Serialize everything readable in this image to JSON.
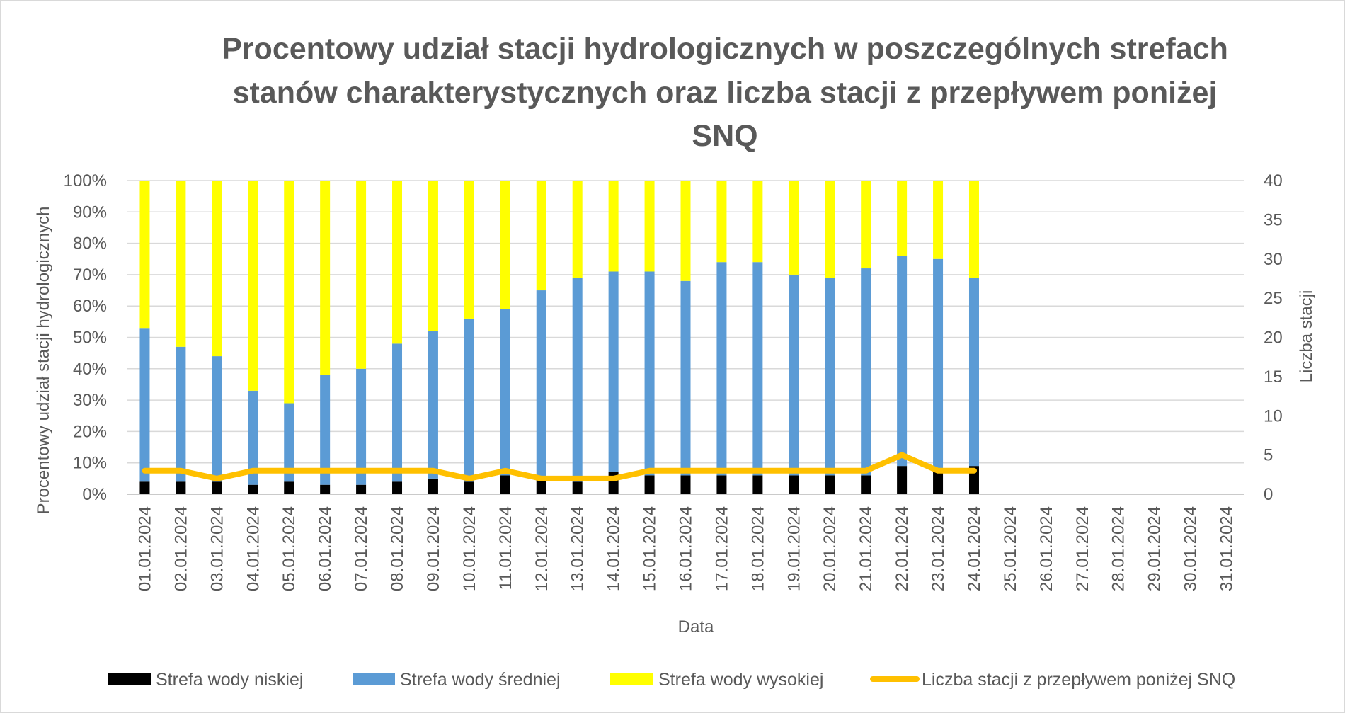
{
  "chart_data": {
    "type": "bar",
    "subtype": "stacked-percent-with-line",
    "title": "Procentowy udział stacji hydrologicznych w poszczególnych strefach stanów charakterystycznych oraz liczba stacji z przepływem poniżej SNQ",
    "title_lines": [
      "Procentowy udział stacji hydrologicznych w poszczególnych strefach",
      "stanów charakterystycznych oraz liczba stacji z przepływem poniżej",
      "SNQ"
    ],
    "xlabel": "Data",
    "ylabel": "Procentowy udział stacji hydrologicznych",
    "y2label": "Liczba stacji",
    "ylim": [
      0,
      100
    ],
    "y2lim": [
      0,
      40
    ],
    "y_ticks": [
      "0%",
      "10%",
      "20%",
      "30%",
      "40%",
      "50%",
      "60%",
      "70%",
      "80%",
      "90%",
      "100%"
    ],
    "y2_ticks": [
      "0",
      "5",
      "10",
      "15",
      "20",
      "25",
      "30",
      "35",
      "40"
    ],
    "grid": true,
    "legend_position": "bottom",
    "categories": [
      "01.01.2024",
      "02.01.2024",
      "03.01.2024",
      "04.01.2024",
      "05.01.2024",
      "06.01.2024",
      "07.01.2024",
      "08.01.2024",
      "09.01.2024",
      "10.01.2024",
      "11.01.2024",
      "12.01.2024",
      "13.01.2024",
      "14.01.2024",
      "15.01.2024",
      "16.01.2024",
      "17.01.2024",
      "18.01.2024",
      "19.01.2024",
      "20.01.2024",
      "21.01.2024",
      "22.01.2024",
      "23.01.2024",
      "24.01.2024",
      "25.01.2024",
      "26.01.2024",
      "27.01.2024",
      "28.01.2024",
      "29.01.2024",
      "30.01.2024",
      "31.01.2024"
    ],
    "series": [
      {
        "name": "Strefa wody niskiej",
        "type": "bar",
        "axis": "left",
        "color": "#000000",
        "values": [
          4,
          4,
          4,
          3,
          4,
          3,
          3,
          4,
          5,
          4,
          6,
          5,
          4,
          7,
          6,
          6,
          6,
          6,
          6,
          6,
          6,
          9,
          7,
          9,
          null,
          null,
          null,
          null,
          null,
          null,
          null
        ]
      },
      {
        "name": "Strefa wody średniej",
        "type": "bar",
        "axis": "left",
        "color": "#5b9bd5",
        "values": [
          49,
          43,
          40,
          30,
          25,
          35,
          37,
          44,
          47,
          52,
          53,
          60,
          65,
          64,
          65,
          62,
          68,
          68,
          64,
          63,
          66,
          67,
          68,
          60,
          null,
          null,
          null,
          null,
          null,
          null,
          null
        ]
      },
      {
        "name": "Strefa wody wysokiej",
        "type": "bar",
        "axis": "left",
        "color": "#ffff00",
        "values": [
          47,
          53,
          56,
          67,
          71,
          62,
          60,
          52,
          48,
          44,
          41,
          35,
          31,
          29,
          29,
          32,
          26,
          26,
          30,
          31,
          28,
          24,
          25,
          31,
          null,
          null,
          null,
          null,
          null,
          null,
          null
        ]
      },
      {
        "name": "Liczba stacji z przepływem poniżej SNQ",
        "type": "line",
        "axis": "right",
        "color": "#ffc000",
        "values": [
          3,
          3,
          2,
          3,
          3,
          3,
          3,
          3,
          3,
          2,
          3,
          2,
          2,
          2,
          3,
          3,
          3,
          3,
          3,
          3,
          3,
          5,
          3,
          3,
          null,
          null,
          null,
          null,
          null,
          null,
          null
        ]
      }
    ]
  }
}
